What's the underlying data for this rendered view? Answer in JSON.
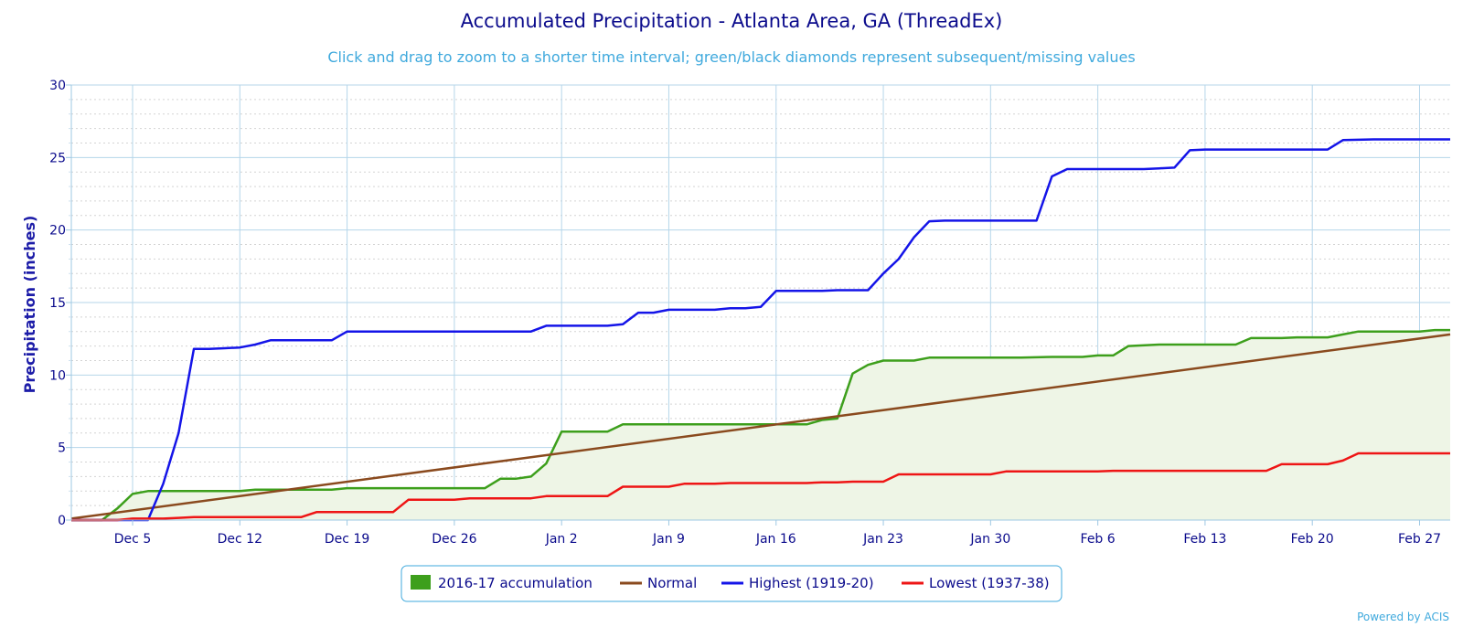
{
  "chart_data": {
    "type": "line",
    "title": "Accumulated Precipitation - Atlanta Area, GA (ThreadEx)",
    "subtitle": "Click and drag to zoom to a shorter time interval; green/black diamonds represent subsequent/missing values",
    "ylabel": "Precipitation (inches)",
    "xlabel": "",
    "ylim": [
      0,
      30
    ],
    "yticks": [
      0,
      5,
      10,
      15,
      20,
      25,
      30
    ],
    "xlim": [
      0,
      90
    ],
    "xtick_labels": [
      {
        "label": "Dec 5",
        "day": 4
      },
      {
        "label": "Dec 12",
        "day": 11
      },
      {
        "label": "Dec 19",
        "day": 18
      },
      {
        "label": "Dec 26",
        "day": 25
      },
      {
        "label": "Jan 2",
        "day": 32
      },
      {
        "label": "Jan 9",
        "day": 39
      },
      {
        "label": "Jan 16",
        "day": 46
      },
      {
        "label": "Jan 23",
        "day": 53
      },
      {
        "label": "Jan 30",
        "day": 60
      },
      {
        "label": "Feb 6",
        "day": 67
      },
      {
        "label": "Feb 13",
        "day": 74
      },
      {
        "label": "Feb 20",
        "day": 81
      },
      {
        "label": "Feb 27",
        "day": 88
      }
    ],
    "grid": true,
    "legend_position": "bottom-center",
    "series": [
      {
        "name": "2016-17 accumulation",
        "style": "area",
        "color": "#3d9f1c",
        "fill": "#eef5e6",
        "points": [
          [
            0,
            0
          ],
          [
            1,
            0
          ],
          [
            2,
            0
          ],
          [
            3,
            0.8
          ],
          [
            4,
            1.8
          ],
          [
            5,
            2.0
          ],
          [
            6,
            2.0
          ],
          [
            8,
            2.0
          ],
          [
            10,
            2.0
          ],
          [
            11,
            2.0
          ],
          [
            12,
            2.1
          ],
          [
            14,
            2.1
          ],
          [
            16,
            2.1
          ],
          [
            17,
            2.1
          ],
          [
            18,
            2.2
          ],
          [
            20,
            2.2
          ],
          [
            22,
            2.2
          ],
          [
            25,
            2.2
          ],
          [
            27,
            2.2
          ],
          [
            28,
            2.85
          ],
          [
            29,
            2.85
          ],
          [
            30,
            3.0
          ],
          [
            31,
            3.9
          ],
          [
            32,
            6.1
          ],
          [
            33,
            6.1
          ],
          [
            34,
            6.1
          ],
          [
            35,
            6.1
          ],
          [
            36,
            6.6
          ],
          [
            38,
            6.6
          ],
          [
            40,
            6.6
          ],
          [
            44,
            6.6
          ],
          [
            48,
            6.6
          ],
          [
            49,
            6.9
          ],
          [
            50,
            7.0
          ],
          [
            51,
            10.1
          ],
          [
            52,
            10.7
          ],
          [
            53,
            11.0
          ],
          [
            54,
            11.0
          ],
          [
            55,
            11.0
          ],
          [
            56,
            11.2
          ],
          [
            58,
            11.2
          ],
          [
            62,
            11.2
          ],
          [
            64,
            11.25
          ],
          [
            66,
            11.25
          ],
          [
            67,
            11.35
          ],
          [
            68,
            11.35
          ],
          [
            69,
            12.0
          ],
          [
            71,
            12.1
          ],
          [
            75,
            12.1
          ],
          [
            76,
            12.1
          ],
          [
            77,
            12.55
          ],
          [
            79,
            12.55
          ],
          [
            80,
            12.6
          ],
          [
            82,
            12.6
          ],
          [
            83,
            12.8
          ],
          [
            84,
            13.0
          ],
          [
            86,
            13.0
          ],
          [
            88,
            13.0
          ],
          [
            89,
            13.1
          ],
          [
            90,
            13.1
          ]
        ]
      },
      {
        "name": "Normal",
        "style": "line",
        "color": "#8a4a1e",
        "points": [
          [
            0,
            0.1
          ],
          [
            90,
            12.8
          ]
        ]
      },
      {
        "name": "Highest (1919-20)",
        "style": "line",
        "color": "#1414e8",
        "points": [
          [
            0,
            0
          ],
          [
            4,
            0
          ],
          [
            5,
            0
          ],
          [
            6,
            2.5
          ],
          [
            7,
            6.0
          ],
          [
            8,
            11.8
          ],
          [
            9,
            11.8
          ],
          [
            10,
            11.85
          ],
          [
            11,
            11.9
          ],
          [
            12,
            12.1
          ],
          [
            13,
            12.4
          ],
          [
            15,
            12.4
          ],
          [
            17,
            12.4
          ],
          [
            18,
            13.0
          ],
          [
            20,
            13.0
          ],
          [
            25,
            13.0
          ],
          [
            30,
            13.0
          ],
          [
            31,
            13.4
          ],
          [
            35,
            13.4
          ],
          [
            36,
            13.5
          ],
          [
            37,
            14.3
          ],
          [
            38,
            14.3
          ],
          [
            39,
            14.5
          ],
          [
            42,
            14.5
          ],
          [
            43,
            14.6
          ],
          [
            44,
            14.6
          ],
          [
            45,
            14.7
          ],
          [
            46,
            15.8
          ],
          [
            48,
            15.8
          ],
          [
            49,
            15.8
          ],
          [
            50,
            15.85
          ],
          [
            52,
            15.85
          ],
          [
            53,
            17.0
          ],
          [
            54,
            18.0
          ],
          [
            55,
            19.5
          ],
          [
            56,
            20.6
          ],
          [
            57,
            20.65
          ],
          [
            60,
            20.65
          ],
          [
            63,
            20.65
          ],
          [
            64,
            23.7
          ],
          [
            65,
            24.2
          ],
          [
            67,
            24.2
          ],
          [
            70,
            24.2
          ],
          [
            71,
            24.25
          ],
          [
            72,
            24.3
          ],
          [
            73,
            25.5
          ],
          [
            74,
            25.55
          ],
          [
            76,
            25.55
          ],
          [
            80,
            25.55
          ],
          [
            82,
            25.55
          ],
          [
            83,
            26.2
          ],
          [
            85,
            26.25
          ],
          [
            88,
            26.25
          ],
          [
            90,
            26.25
          ]
        ]
      },
      {
        "name": "Lowest (1937-38)",
        "style": "line",
        "color": "#ee1515",
        "points": [
          [
            0,
            0
          ],
          [
            3,
            0
          ],
          [
            4,
            0.1
          ],
          [
            6,
            0.1
          ],
          [
            7,
            0.15
          ],
          [
            8,
            0.2
          ],
          [
            10,
            0.2
          ],
          [
            12,
            0.2
          ],
          [
            14,
            0.2
          ],
          [
            15,
            0.2
          ],
          [
            16,
            0.55
          ],
          [
            17,
            0.55
          ],
          [
            20,
            0.55
          ],
          [
            21,
            0.55
          ],
          [
            22,
            1.4
          ],
          [
            25,
            1.4
          ],
          [
            26,
            1.5
          ],
          [
            30,
            1.5
          ],
          [
            31,
            1.65
          ],
          [
            35,
            1.65
          ],
          [
            36,
            2.3
          ],
          [
            38,
            2.3
          ],
          [
            39,
            2.3
          ],
          [
            40,
            2.5
          ],
          [
            42,
            2.5
          ],
          [
            43,
            2.55
          ],
          [
            46,
            2.55
          ],
          [
            48,
            2.55
          ],
          [
            49,
            2.6
          ],
          [
            50,
            2.6
          ],
          [
            51,
            2.65
          ],
          [
            53,
            2.65
          ],
          [
            54,
            3.15
          ],
          [
            57,
            3.15
          ],
          [
            60,
            3.15
          ],
          [
            61,
            3.35
          ],
          [
            66,
            3.35
          ],
          [
            67,
            3.35
          ],
          [
            68,
            3.4
          ],
          [
            75,
            3.4
          ],
          [
            78,
            3.4
          ],
          [
            79,
            3.85
          ],
          [
            80,
            3.85
          ],
          [
            82,
            3.85
          ],
          [
            83,
            4.1
          ],
          [
            84,
            4.6
          ],
          [
            88,
            4.6
          ],
          [
            90,
            4.6
          ]
        ]
      }
    ]
  },
  "footer": {
    "powered_by": "Powered by ACIS"
  }
}
